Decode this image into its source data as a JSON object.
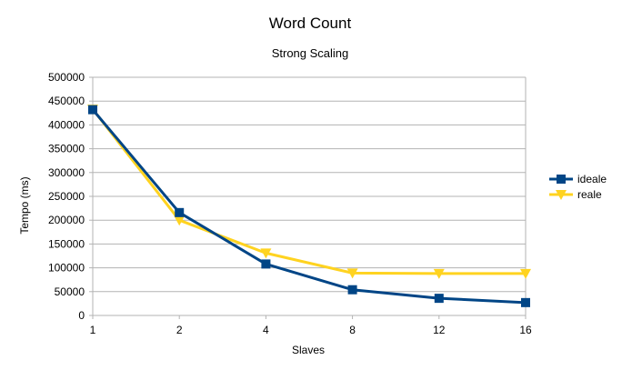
{
  "chart_data": {
    "type": "line",
    "title": "Word Count",
    "subtitle": "Strong Scaling",
    "xlabel": "Slaves",
    "ylabel": "Tempo (ms)",
    "categories": [
      "1",
      "2",
      "4",
      "8",
      "12",
      "16"
    ],
    "ylim": [
      0,
      500000
    ],
    "yticks": [
      "0",
      "50000",
      "100000",
      "150000",
      "200000",
      "250000",
      "300000",
      "350000",
      "400000",
      "450000",
      "500000"
    ],
    "grid": true,
    "legend": "right",
    "series": [
      {
        "name": "ideale",
        "color": "#004586",
        "marker": "square",
        "values": [
          432000,
          216000,
          108000,
          54000,
          36000,
          27000
        ]
      },
      {
        "name": "reale",
        "color": "#ffd320",
        "marker": "triangle-down",
        "values": [
          433000,
          200000,
          131000,
          89000,
          88000,
          88000
        ]
      }
    ]
  }
}
